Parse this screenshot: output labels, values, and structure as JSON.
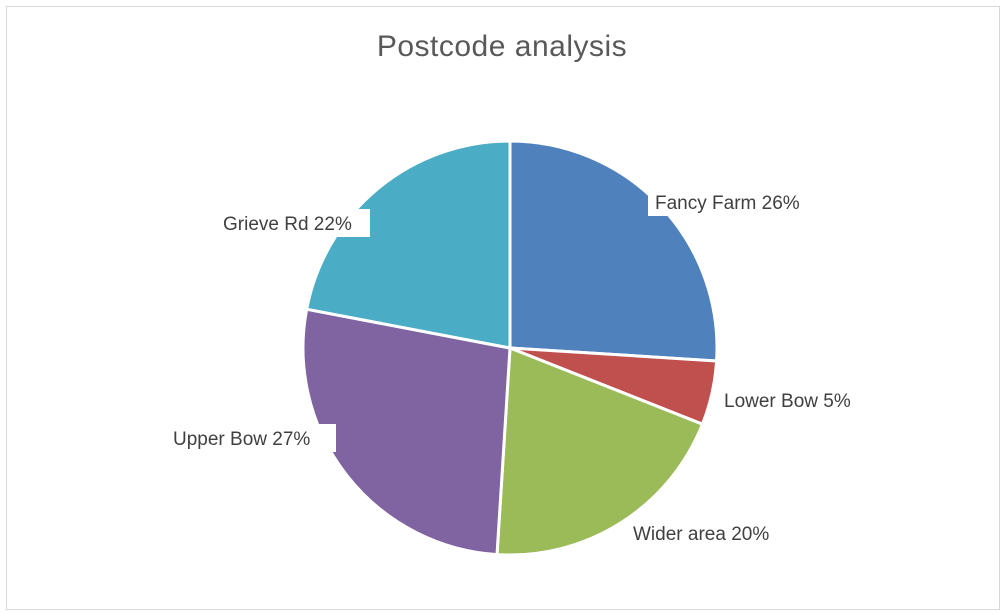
{
  "chart_data": {
    "type": "pie",
    "title": "Postcode analysis",
    "slices": [
      {
        "category": "Fancy Farm",
        "value": 26,
        "label": "Fancy Farm 26%",
        "color": "#4F81BD"
      },
      {
        "category": "Lower Bow",
        "value": 5,
        "label": "Lower Bow  5%",
        "color": "#C0504D"
      },
      {
        "category": "Wider area",
        "value": 20,
        "label": "Wider area 20%",
        "color": "#9BBB59"
      },
      {
        "category": "Upper Bow",
        "value": 27,
        "label": "Upper Bow 27%",
        "color": "#8064A2"
      },
      {
        "category": "Grieve Rd",
        "value": 22,
        "label": "Grieve Rd 22%",
        "color": "#4BACC6"
      }
    ],
    "legend": "none",
    "start": "12 o'clock",
    "direction": "clockwise"
  }
}
